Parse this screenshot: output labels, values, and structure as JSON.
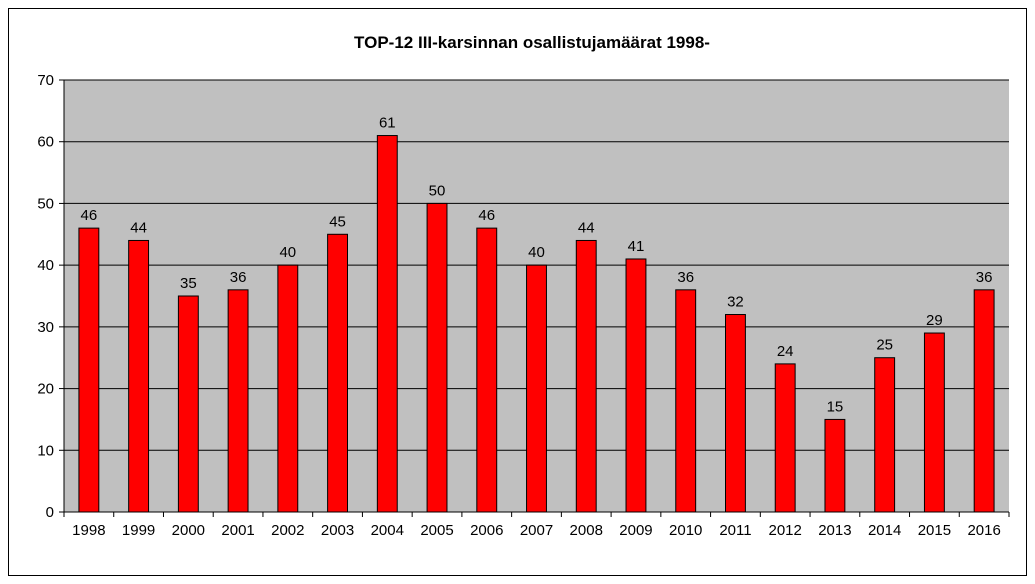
{
  "chart_data": {
    "type": "bar",
    "title": "TOP-12 III-karsinnan osallistujamäärat 1998-",
    "categories": [
      "1998",
      "1999",
      "2000",
      "2001",
      "2002",
      "2003",
      "2004",
      "2005",
      "2006",
      "2007",
      "2008",
      "2009",
      "2010",
      "2011",
      "2012",
      "2013",
      "2014",
      "2015",
      "2016"
    ],
    "values": [
      46,
      44,
      35,
      36,
      40,
      45,
      61,
      50,
      46,
      40,
      44,
      41,
      36,
      32,
      24,
      15,
      25,
      29,
      36
    ],
    "xlabel": "",
    "ylabel": "",
    "ylim": [
      0,
      70
    ],
    "yticks": [
      0,
      10,
      20,
      30,
      40,
      50,
      60,
      70
    ],
    "grid": true,
    "legend": "none",
    "colors": {
      "bar": "#ff0000",
      "bar_edge": "#000000",
      "plot_background": "#c0c0c0",
      "gridline": "#000000"
    }
  }
}
